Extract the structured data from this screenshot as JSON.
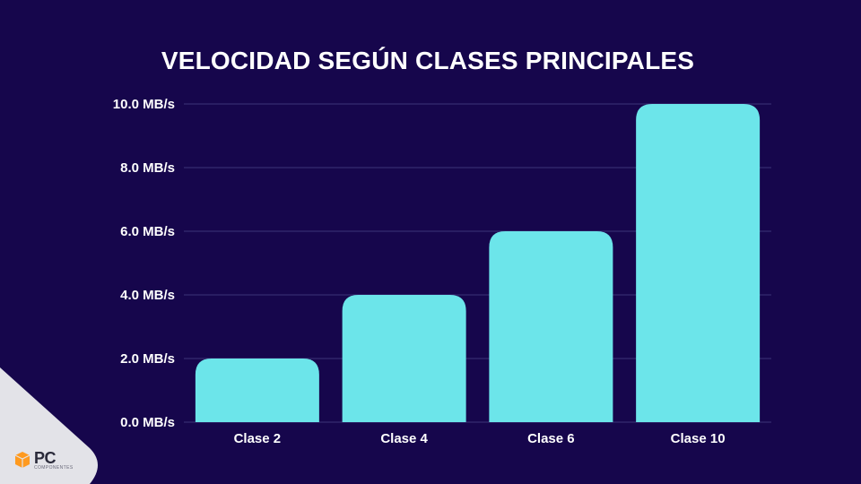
{
  "chart_data": {
    "type": "bar",
    "title": "VELOCIDAD SEGÚN CLASES PRINCIPALES",
    "categories": [
      "Clase 2",
      "Clase 4",
      "Clase 6",
      "Clase 10"
    ],
    "values": [
      2,
      4,
      6,
      10
    ],
    "unit": "MB/s",
    "ylim": [
      0,
      10
    ],
    "yticks": [
      "0.0 MB/s",
      "2.0 MB/s",
      "4.0 MB/s",
      "6.0 MB/s",
      "8.0 MB/s",
      "10.0 MB/s"
    ],
    "xlabel": "",
    "ylabel": "",
    "grid": true,
    "bar_color": "#6ce5ea",
    "grid_color": "#3c3478",
    "background": "#16064c"
  },
  "logo": {
    "name": "PC",
    "subtext": "COMPONENTES",
    "accent": "#ff9a1f"
  }
}
